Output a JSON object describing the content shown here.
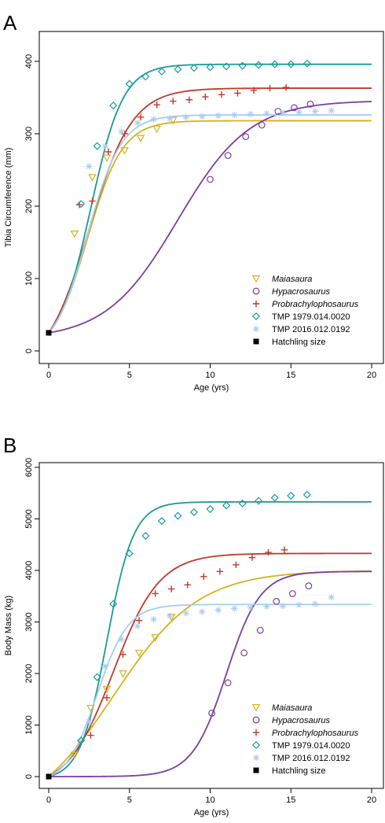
{
  "chart_data": [
    {
      "type": "scatter",
      "panel": "A",
      "xlabel": "Age (yrs)",
      "ylabel": "Tibia Circumference (mm)",
      "xlim": [
        0,
        20
      ],
      "ylim": [
        0,
        400
      ],
      "xticks": [
        "0",
        "5",
        "10",
        "15",
        "20"
      ],
      "yticks": [
        "0",
        "100",
        "200",
        "300",
        "400"
      ],
      "legend_position": "bottom-right",
      "series": [
        {
          "name": "Maiasaura",
          "italic": true,
          "color": "#d4b21c",
          "marker": "triangle-down",
          "x": [
            1.6,
            2.7,
            3.6,
            4.7,
            5.7,
            6.7,
            7.7
          ],
          "y": [
            162,
            240,
            267,
            277,
            294,
            307,
            319
          ],
          "curve": {
            "asym": 318,
            "k": 0.92,
            "t0": 2.4
          }
        },
        {
          "name": "Hypacrosaurus",
          "italic": true,
          "color": "#7b3fa0",
          "marker": "circle",
          "x": [
            10.0,
            11.1,
            12.2,
            13.2,
            14.2,
            15.2,
            16.2
          ],
          "y": [
            237,
            270,
            296,
            312,
            331,
            336,
            341
          ],
          "curve": {
            "asym": 346,
            "k": 0.45,
            "t0": 8.0
          }
        },
        {
          "name": "Probrachylophosaurus",
          "italic": true,
          "color": "#c0392b",
          "marker": "plus",
          "x": [
            1.9,
            2.7,
            3.7,
            4.7,
            5.7,
            6.7,
            7.7,
            8.7,
            9.7,
            10.7,
            11.7,
            12.7,
            13.7,
            14.7
          ],
          "y": [
            202,
            207,
            275,
            300,
            323,
            340,
            345,
            347,
            351,
            354,
            356,
            360,
            363,
            364
          ],
          "curve": {
            "asym": 363,
            "k": 0.75,
            "t0": 2.5
          }
        },
        {
          "name": "TMP 1979.014.0020",
          "italic": false,
          "color": "#1a9a9a",
          "marker": "diamond",
          "x": [
            2.0,
            3.0,
            4.0,
            5.0,
            6.0,
            7.0,
            8.0,
            9.0,
            10.0,
            11.0,
            12.0,
            13.0,
            14.0,
            15.0,
            16.0
          ],
          "y": [
            203,
            283,
            339,
            369,
            379,
            386,
            389,
            391,
            392,
            393,
            394,
            395,
            396,
            396,
            397
          ],
          "curve": {
            "asym": 396,
            "k": 1.0,
            "t0": 2.6
          }
        },
        {
          "name": "TMP 2016.012.0192",
          "italic": false,
          "color": "#a9cdf0",
          "marker": "asterisk",
          "x": [
            2.5,
            3.5,
            4.5,
            5.5,
            6.5,
            7.5,
            8.5,
            9.5,
            10.5,
            11.5,
            12.5,
            13.5,
            14.5,
            15.5,
            16.5,
            17.5
          ],
          "y": [
            255,
            283,
            303,
            315,
            320,
            321,
            323,
            324,
            325,
            326,
            327,
            328,
            329,
            330,
            331,
            332
          ],
          "curve": {
            "asym": 326,
            "k": 0.95,
            "t0": 2.4
          }
        },
        {
          "name": "Hatchling size",
          "italic": false,
          "color": "#000000",
          "marker": "square",
          "x": [
            0
          ],
          "y": [
            25
          ],
          "curve": null
        }
      ]
    },
    {
      "type": "scatter",
      "panel": "B",
      "xlabel": "Age (yrs)",
      "ylabel": "Body Mass (kg)",
      "xlim": [
        0,
        20
      ],
      "ylim": [
        0,
        6000
      ],
      "xticks": [
        "0",
        "5",
        "10",
        "15",
        "20"
      ],
      "yticks": [
        "0",
        "1000",
        "2000",
        "3000",
        "4000",
        "5000",
        "6000"
      ],
      "legend_position": "bottom-right",
      "series": [
        {
          "name": "Maiasaura",
          "italic": true,
          "color": "#d4b21c",
          "marker": "triangle-down",
          "x": [
            1.6,
            2.6,
            3.6,
            4.6,
            5.6,
            6.6,
            7.6
          ],
          "y": [
            420,
            1330,
            1700,
            2000,
            2400,
            2700,
            3100
          ],
          "curve": {
            "asym": 4000,
            "k": 0.38,
            "t0": 4.0
          }
        },
        {
          "name": "Hypacrosaurus",
          "italic": true,
          "color": "#7b3fa0",
          "marker": "circle",
          "x": [
            10.1,
            11.1,
            12.1,
            13.1,
            14.1,
            15.1,
            16.1
          ],
          "y": [
            1230,
            1820,
            2400,
            2840,
            3400,
            3550,
            3700
          ],
          "curve": {
            "asym": 3980,
            "k": 0.95,
            "t0": 11.0
          }
        },
        {
          "name": "Probrachylophosaurus",
          "italic": true,
          "color": "#c0392b",
          "marker": "plus",
          "x": [
            2.6,
            3.6,
            4.6,
            5.6,
            6.6,
            7.6,
            8.6,
            9.6,
            10.6,
            11.6,
            12.6,
            13.6,
            14.6
          ],
          "y": [
            800,
            1530,
            2370,
            3030,
            3550,
            3640,
            3720,
            3880,
            3980,
            4110,
            4250,
            4350,
            4400
          ],
          "curve": {
            "asym": 4330,
            "k": 0.7,
            "t0": 4.0
          }
        },
        {
          "name": "TMP 1979.014.0020",
          "italic": false,
          "color": "#1a9a9a",
          "marker": "diamond",
          "x": [
            2.0,
            3.0,
            4.0,
            5.0,
            6.0,
            7.0,
            8.0,
            9.0,
            10.0,
            11.0,
            12.0,
            13.0,
            14.0,
            15.0,
            16.0
          ],
          "y": [
            700,
            1930,
            3350,
            4330,
            4670,
            4960,
            5060,
            5130,
            5190,
            5260,
            5300,
            5350,
            5410,
            5450,
            5470
          ],
          "curve": {
            "asym": 5330,
            "k": 1.2,
            "t0": 3.6
          }
        },
        {
          "name": "TMP 2016.012.0192",
          "italic": false,
          "color": "#a9cdf0",
          "marker": "asterisk",
          "x": [
            2.5,
            3.5,
            4.5,
            5.5,
            6.5,
            7.5,
            8.5,
            9.5,
            10.5,
            11.5,
            12.5,
            13.5,
            14.5,
            15.5,
            16.5,
            17.5
          ],
          "y": [
            1060,
            2140,
            2660,
            2920,
            3050,
            3120,
            3170,
            3200,
            3230,
            3260,
            3280,
            3300,
            3310,
            3330,
            3350,
            3480
          ],
          "curve": {
            "asym": 3340,
            "k": 1.05,
            "t0": 3.0
          }
        },
        {
          "name": "Hatchling size",
          "italic": false,
          "color": "#000000",
          "marker": "square",
          "x": [
            0
          ],
          "y": [
            0
          ],
          "curve": null
        }
      ]
    }
  ]
}
